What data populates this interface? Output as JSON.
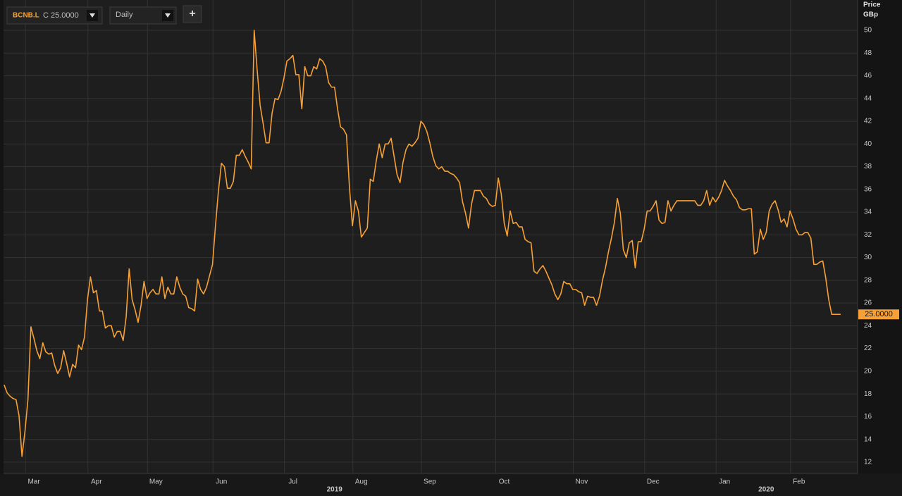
{
  "toolbar": {
    "symbol": "BCNB.L",
    "close_label": "C 25.0000",
    "interval": "Daily",
    "add_button": "+"
  },
  "chart_data": {
    "type": "line",
    "axis_title": [
      "Price",
      "GBp"
    ],
    "price_tag": "25.0000",
    "color": "#f7a035",
    "grid": true,
    "values": [
      18.8,
      18.1,
      17.8,
      17.6,
      17.5,
      16.1,
      12.5,
      14.7,
      17.5,
      23.9,
      22.9,
      21.8,
      21.1,
      22.5,
      21.7,
      21.5,
      21.6,
      20.5,
      19.8,
      20.3,
      21.8,
      20.7,
      19.5,
      20.6,
      20.3,
      22.3,
      21.9,
      23.0,
      26.3,
      28.3,
      26.9,
      27.1,
      25.3,
      25.3,
      23.8,
      24.0,
      24.0,
      23.0,
      23.5,
      23.5,
      22.7,
      24.8,
      29.0,
      26.3,
      25.4,
      24.3,
      25.8,
      27.9,
      26.4,
      26.9,
      27.2,
      26.8,
      26.8,
      28.3,
      26.4,
      27.4,
      26.8,
      26.8,
      28.3,
      27.4,
      26.8,
      26.6,
      25.6,
      25.5,
      25.3,
      28.1,
      27.2,
      26.8,
      27.4,
      28.4,
      29.4,
      32.8,
      35.9,
      38.3,
      38.0,
      36.1,
      36.1,
      36.7,
      39.0,
      39.0,
      39.5,
      38.9,
      38.4,
      37.8,
      50.0,
      46.5,
      43.4,
      41.8,
      40.1,
      40.1,
      42.7,
      44.0,
      43.9,
      44.6,
      45.8,
      47.3,
      47.5,
      47.8,
      46.1,
      46.1,
      43.1,
      46.8,
      46.0,
      46.0,
      46.8,
      46.6,
      47.5,
      47.3,
      46.8,
      45.4,
      45.0,
      45.0,
      43.1,
      41.5,
      41.3,
      40.8,
      36.2,
      32.8,
      35.0,
      34.1,
      31.8,
      32.2,
      32.6,
      36.9,
      36.7,
      38.5,
      40.0,
      38.8,
      40.0,
      40.0,
      40.5,
      38.9,
      37.3,
      36.6,
      38.4,
      39.5,
      40.0,
      39.8,
      40.1,
      40.5,
      42.0,
      41.7,
      41.1,
      40.1,
      38.9,
      38.1,
      37.8,
      38.0,
      37.6,
      37.6,
      37.4,
      37.3,
      37.0,
      36.6,
      34.9,
      33.9,
      32.6,
      34.7,
      35.9,
      35.9,
      35.9,
      35.4,
      35.2,
      34.7,
      34.5,
      34.6,
      37.0,
      35.6,
      33.0,
      31.9,
      34.1,
      33.0,
      33.1,
      32.7,
      32.7,
      31.6,
      31.4,
      31.3,
      28.8,
      28.6,
      29.0,
      29.3,
      28.8,
      28.2,
      27.6,
      26.8,
      26.3,
      26.8,
      27.9,
      27.7,
      27.7,
      27.2,
      27.2,
      27.0,
      26.9,
      25.8,
      26.6,
      26.5,
      26.5,
      25.8,
      26.6,
      28.0,
      29.1,
      30.5,
      31.7,
      33.1,
      35.2,
      33.9,
      30.7,
      30.0,
      31.3,
      31.5,
      29.1,
      31.4,
      31.4,
      32.5,
      34.1,
      34.1,
      34.5,
      35.0,
      33.3,
      33.0,
      33.1,
      35.0,
      34.1,
      34.6,
      35.0,
      35.0,
      35.0,
      35.0,
      35.0,
      35.0,
      35.0,
      34.6,
      34.6,
      35.0,
      35.9,
      34.6,
      35.3,
      34.9,
      35.3,
      35.9,
      36.8,
      36.3,
      35.9,
      35.4,
      35.1,
      34.4,
      34.2,
      34.2,
      34.3,
      34.3,
      30.3,
      30.5,
      32.5,
      31.6,
      32.2,
      34.1,
      34.7,
      35.0,
      34.2,
      33.1,
      33.4,
      32.7,
      34.1,
      33.4,
      32.5,
      32.0,
      32.0,
      32.2,
      32.2,
      31.7,
      29.4,
      29.4,
      29.6,
      29.7,
      28.2,
      26.3,
      25.0,
      25.0,
      25.0,
      25.0
    ],
    "xlim": [
      -0.2,
      286.7
    ],
    "xticks": [
      {
        "value": 10,
        "label": "Mar"
      },
      {
        "value": 31,
        "label": "Apr"
      },
      {
        "value": 51,
        "label": "May"
      },
      {
        "value": 73,
        "label": "Jun"
      },
      {
        "value": 97,
        "label": "Jul"
      },
      {
        "value": 120,
        "label": "Aug"
      },
      {
        "value": 143,
        "label": "Sep"
      },
      {
        "value": 168,
        "label": "Oct"
      },
      {
        "value": 194,
        "label": "Nov"
      },
      {
        "value": 218,
        "label": "Dec"
      },
      {
        "value": 242,
        "label": "Jan"
      },
      {
        "value": 267,
        "label": "Feb"
      }
    ],
    "year_ticks": [
      {
        "value": 111,
        "label": "2019"
      },
      {
        "value": 256,
        "label": "2020"
      }
    ],
    "ylim": [
      11.0,
      52.67
    ],
    "yticks": [
      12,
      14,
      16,
      18,
      20,
      22,
      24,
      26,
      28,
      30,
      32,
      34,
      36,
      38,
      40,
      42,
      44,
      46,
      48,
      50
    ]
  }
}
